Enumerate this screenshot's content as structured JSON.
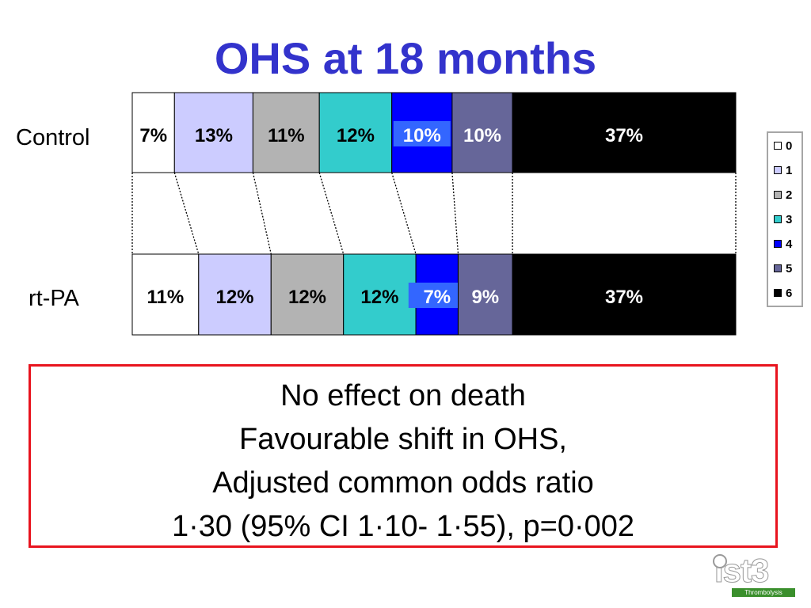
{
  "slide": {
    "title": "OHS at 18 months"
  },
  "chart_data": {
    "type": "bar",
    "orientation": "horizontal",
    "stacked": true,
    "normalized_percent": true,
    "categories": [
      "Control",
      "rt-PA"
    ],
    "series": [
      {
        "name": "0",
        "values": [
          7,
          11
        ],
        "labels": [
          "7%",
          "11%"
        ],
        "color": "#ffffff"
      },
      {
        "name": "1",
        "values": [
          13,
          12
        ],
        "labels": [
          "13%",
          "12%"
        ],
        "color": "#ccccff"
      },
      {
        "name": "2",
        "values": [
          11,
          12
        ],
        "labels": [
          "11%",
          "12%"
        ],
        "color": "#b3b3b3"
      },
      {
        "name": "3",
        "values": [
          12,
          12
        ],
        "labels": [
          "12%",
          "12%"
        ],
        "color": "#33cccc"
      },
      {
        "name": "4",
        "values": [
          10,
          7
        ],
        "labels": [
          "10%",
          "7%"
        ],
        "color": "#0000ff"
      },
      {
        "name": "5",
        "values": [
          10,
          9
        ],
        "labels": [
          "10%",
          "9%"
        ],
        "color": "#666699"
      },
      {
        "name": "6",
        "values": [
          37,
          37
        ],
        "labels": [
          "37%",
          "37%"
        ],
        "color": "#000000"
      }
    ],
    "legend_position": "right",
    "connector_lines": "dotted",
    "label_highlight_color": "#3366ff",
    "highlighted_series": "4"
  },
  "message": {
    "lines": [
      "No effect on death",
      "Favourable shift in OHS,",
      "Adjusted common odds ratio",
      "1·30 (95% CI 1·10- 1·55), p=0·002"
    ],
    "border_color": "#e8141e"
  },
  "logo": {
    "main": "ist3",
    "sub": "Thrombolysis",
    "color": "#3a8f2c"
  }
}
